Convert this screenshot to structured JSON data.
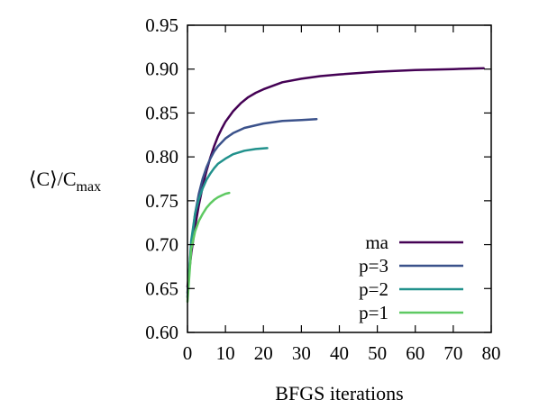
{
  "chart_data": {
    "type": "line",
    "xlabel": "BFGS iterations",
    "ylabel": "⟨C⟩/C",
    "ylabel_sub": "max",
    "xlim": [
      0,
      80
    ],
    "ylim": [
      0.6,
      0.95
    ],
    "xticks": [
      0,
      10,
      20,
      30,
      40,
      50,
      60,
      70,
      80
    ],
    "yticks": [
      0.6,
      0.65,
      0.7,
      0.75,
      0.8,
      0.85,
      0.9,
      0.95
    ],
    "grid": false,
    "legend_position": "bottom-right",
    "series": [
      {
        "name": "ma",
        "color": "#440154",
        "x": [
          0,
          1,
          2,
          3,
          4,
          5,
          6,
          7,
          8,
          9,
          10,
          12,
          14,
          16,
          18,
          20,
          25,
          30,
          35,
          40,
          50,
          60,
          70,
          78
        ],
        "y": [
          0.652,
          0.69,
          0.72,
          0.745,
          0.766,
          0.784,
          0.799,
          0.812,
          0.823,
          0.832,
          0.84,
          0.852,
          0.861,
          0.868,
          0.873,
          0.877,
          0.885,
          0.889,
          0.892,
          0.894,
          0.897,
          0.899,
          0.9,
          0.901
        ]
      },
      {
        "name": "p=3",
        "color": "#3b528b",
        "x": [
          0,
          1,
          2,
          3,
          4,
          5,
          6,
          7,
          8,
          10,
          12,
          15,
          20,
          25,
          30,
          34
        ],
        "y": [
          0.645,
          0.7,
          0.735,
          0.758,
          0.775,
          0.788,
          0.798,
          0.806,
          0.812,
          0.821,
          0.827,
          0.833,
          0.838,
          0.841,
          0.842,
          0.843
        ]
      },
      {
        "name": "p=2",
        "color": "#21918c",
        "x": [
          0,
          1,
          2,
          3,
          4,
          5,
          6,
          7,
          8,
          10,
          12,
          15,
          18,
          21
        ],
        "y": [
          0.64,
          0.705,
          0.735,
          0.752,
          0.764,
          0.774,
          0.781,
          0.787,
          0.792,
          0.798,
          0.803,
          0.807,
          0.809,
          0.81
        ]
      },
      {
        "name": "p=1",
        "color": "#5ec962",
        "x": [
          0,
          1,
          2,
          3,
          4,
          5,
          6,
          7,
          8,
          9,
          10,
          11
        ],
        "y": [
          0.635,
          0.695,
          0.715,
          0.727,
          0.735,
          0.742,
          0.747,
          0.751,
          0.754,
          0.756,
          0.758,
          0.759
        ]
      }
    ]
  }
}
